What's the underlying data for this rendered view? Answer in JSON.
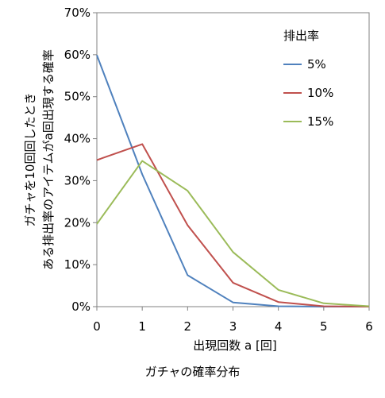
{
  "caption": "ガチャの確率分布",
  "chart_data": {
    "type": "line",
    "title": "",
    "xlabel": "出現回数 a [回]",
    "ylabel_lines": [
      "ガチャを10回回したとき",
      "ある排出率のアイテムがa回出現する確率"
    ],
    "x": [
      0,
      1,
      2,
      3,
      4,
      5,
      6
    ],
    "x_tick_labels": [
      "0",
      "1",
      "2",
      "3",
      "4",
      "5",
      "6"
    ],
    "y_tick_labels": [
      "0%",
      "10%",
      "20%",
      "30%",
      "40%",
      "50%",
      "60%",
      "70%"
    ],
    "xlim": [
      0,
      6
    ],
    "ylim": [
      0,
      0.7
    ],
    "grid": false,
    "legend": {
      "title": "排出率",
      "position": "top-right"
    },
    "series": [
      {
        "name": "5%",
        "color": "#4f81bd",
        "values": [
          0.599,
          0.315,
          0.075,
          0.01,
          0.001,
          0.0,
          0.0
        ]
      },
      {
        "name": "10%",
        "color": "#c0504d",
        "values": [
          0.349,
          0.387,
          0.194,
          0.057,
          0.011,
          0.001,
          0.0
        ]
      },
      {
        "name": "15%",
        "color": "#9bbb59",
        "values": [
          0.197,
          0.347,
          0.276,
          0.13,
          0.04,
          0.008,
          0.001
        ]
      }
    ]
  }
}
